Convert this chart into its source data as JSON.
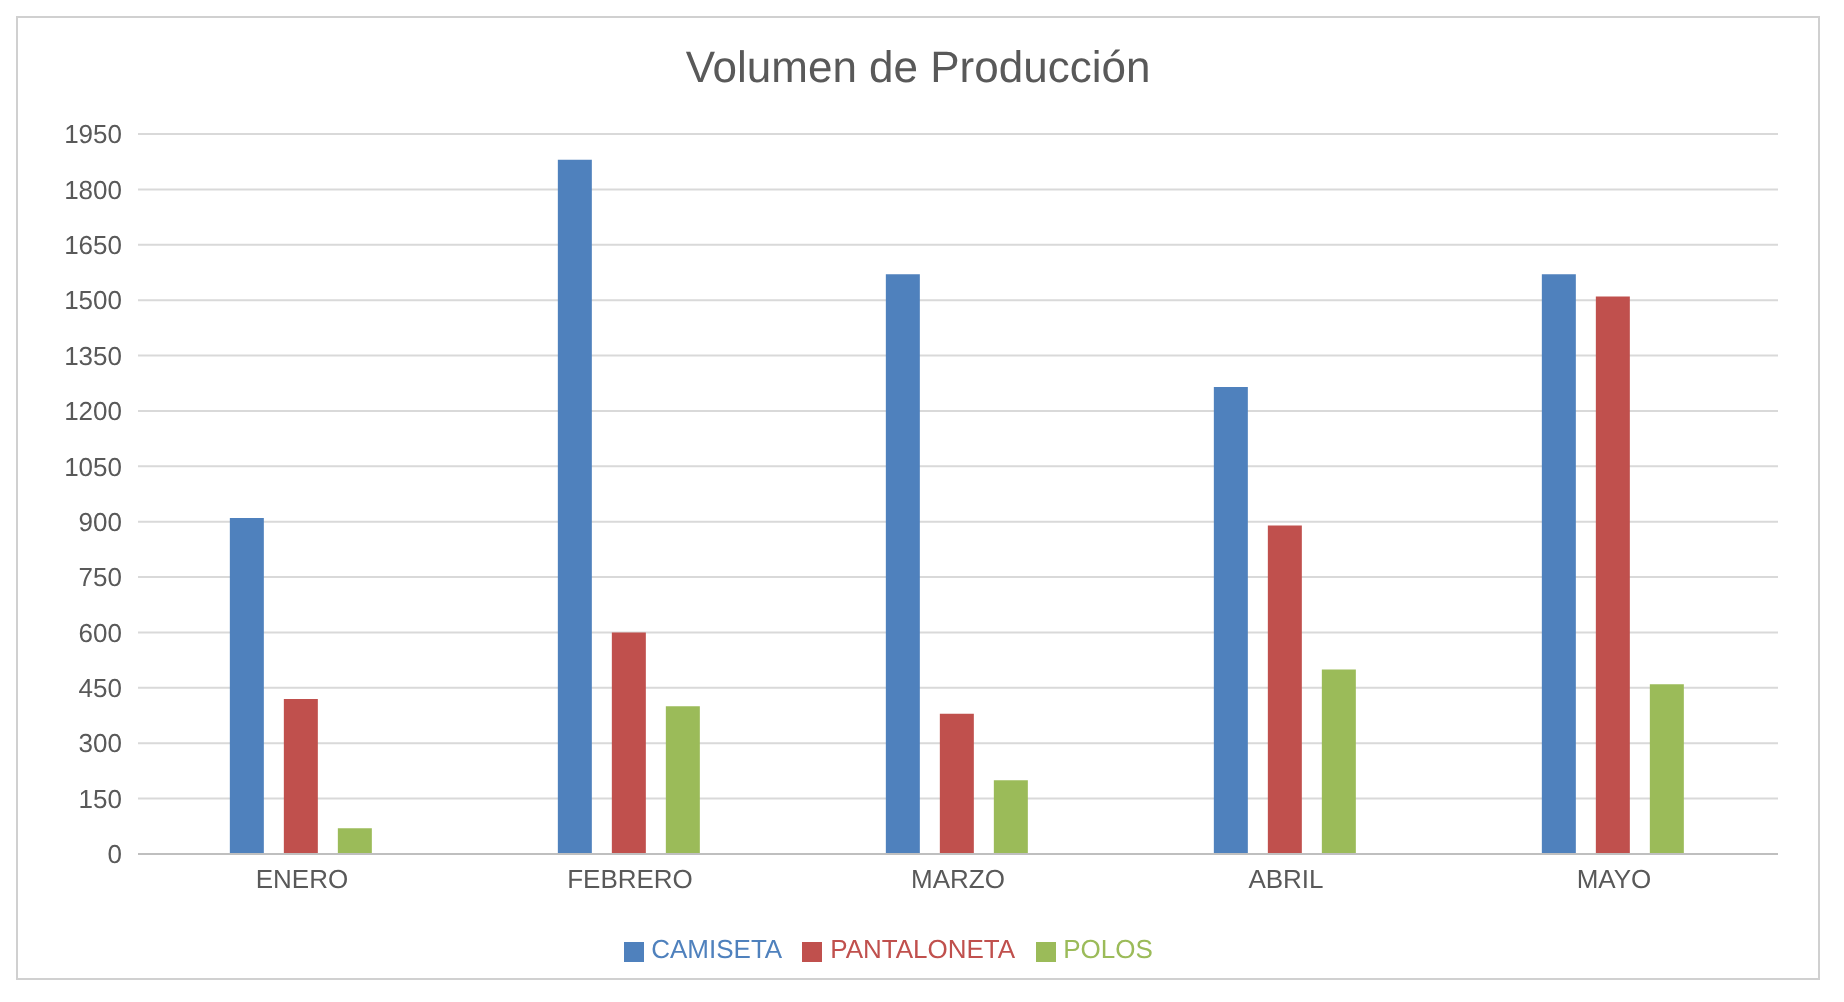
{
  "chart_data": {
    "type": "bar",
    "title": "Volumen de Producción",
    "categories": [
      "ENERO",
      "FEBRERO",
      "MARZO",
      "ABRIL",
      "MAYO"
    ],
    "series": [
      {
        "name": "CAMISETA",
        "color": "#4f81bd",
        "values": [
          910,
          1880,
          1570,
          1265,
          1570
        ]
      },
      {
        "name": "PANTALONETA",
        "color": "#c0504d",
        "values": [
          420,
          600,
          380,
          890,
          1510
        ]
      },
      {
        "name": "POLOS",
        "color": "#9bbb59",
        "values": [
          70,
          400,
          200,
          500,
          460
        ]
      }
    ],
    "ylim": [
      0,
      1950
    ],
    "yticks": [
      0,
      150,
      300,
      450,
      600,
      750,
      900,
      1050,
      1200,
      1350,
      1500,
      1650,
      1800,
      1950
    ],
    "grid": "y",
    "legend": "bottom"
  }
}
